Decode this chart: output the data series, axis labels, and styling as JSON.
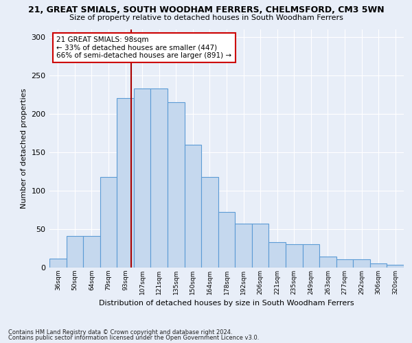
{
  "title1": "21, GREAT SMIALS, SOUTH WOODHAM FERRERS, CHELMSFORD, CM3 5WN",
  "title2": "Size of property relative to detached houses in South Woodham Ferrers",
  "xlabel": "Distribution of detached houses by size in South Woodham Ferrers",
  "ylabel": "Number of detached properties",
  "categories": [
    "36sqm",
    "50sqm",
    "64sqm",
    "79sqm",
    "93sqm",
    "107sqm",
    "121sqm",
    "135sqm",
    "150sqm",
    "164sqm",
    "178sqm",
    "192sqm",
    "206sqm",
    "221sqm",
    "235sqm",
    "249sqm",
    "263sqm",
    "277sqm",
    "292sqm",
    "306sqm",
    "320sqm"
  ],
  "bar_values": [
    12,
    41,
    41,
    118,
    220,
    233,
    233,
    215,
    160,
    118,
    72,
    57,
    57,
    33,
    30,
    30,
    14,
    11,
    11,
    5,
    4
  ],
  "bar_color": "#c5d8ee",
  "bar_edge_color": "#5b9bd5",
  "vline_color": "#aa0000",
  "annotation_title": "21 GREAT SMIALS: 98sqm",
  "annotation_line2": "← 33% of detached houses are smaller (447)",
  "annotation_line3": "66% of semi-detached houses are larger (891) →",
  "annotation_box_facecolor": "#ffffff",
  "annotation_box_edgecolor": "#cc0000",
  "ylim": [
    0,
    310
  ],
  "yticks": [
    0,
    50,
    100,
    150,
    200,
    250,
    300
  ],
  "footer1": "Contains HM Land Registry data © Crown copyright and database right 2024.",
  "footer2": "Contains public sector information licensed under the Open Government Licence v3.0.",
  "background_color": "#e8eef8",
  "grid_color": "#ffffff",
  "figsize": [
    6.0,
    5.0
  ],
  "dpi": 100
}
